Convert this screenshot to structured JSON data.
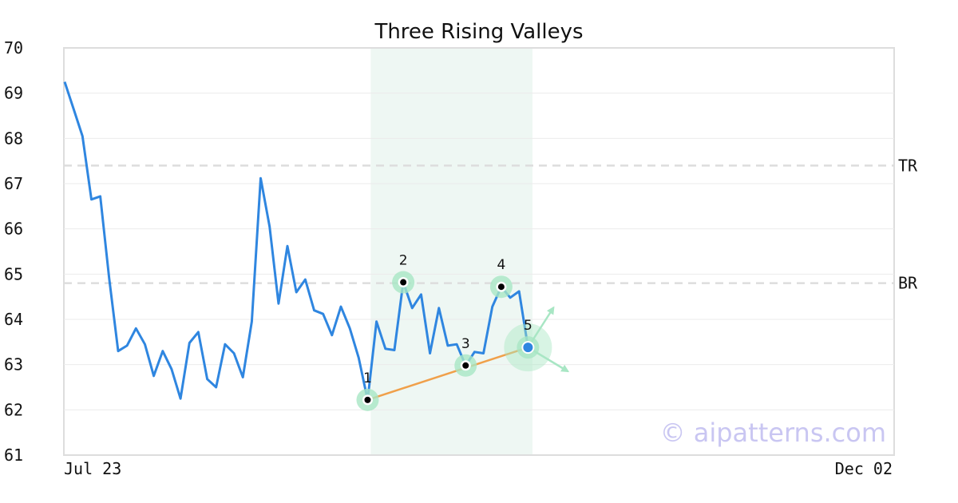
{
  "chart_data": {
    "type": "line",
    "title": "Three Rising Valleys",
    "xlabel": "",
    "ylabel": "",
    "ylim": [
      61,
      70
    ],
    "yticks": [
      61,
      62,
      63,
      64,
      65,
      66,
      67,
      68,
      69,
      70
    ],
    "x_tick_labels": [
      "Jul 23",
      "Dec 02"
    ],
    "grid": true,
    "series": [
      {
        "color": "#2f86e0",
        "values": [
          69.25,
          68.65,
          68.05,
          66.65,
          66.72,
          64.9,
          63.3,
          63.42,
          63.8,
          63.45,
          62.75,
          63.3,
          62.9,
          62.25,
          63.48,
          63.72,
          62.68,
          62.5,
          63.45,
          63.25,
          62.72,
          63.95,
          67.12,
          66.05,
          64.35,
          65.62,
          64.6,
          64.88,
          64.2,
          64.12,
          63.65,
          64.28,
          63.8,
          63.15,
          62.22,
          63.95,
          63.35,
          63.32,
          64.82,
          64.25,
          64.55,
          63.25,
          64.25,
          63.42,
          63.45,
          62.98,
          63.28,
          63.25,
          64.28,
          64.72,
          64.48,
          64.62,
          63.38
        ]
      }
    ],
    "pattern": {
      "points": [
        {
          "label": "1",
          "index": 34,
          "value": 62.22
        },
        {
          "label": "2",
          "index": 38,
          "value": 64.82
        },
        {
          "label": "3",
          "index": 45,
          "value": 62.98
        },
        {
          "label": "4",
          "index": 49,
          "value": 64.72
        },
        {
          "label": "5",
          "index": 52,
          "value": 63.38
        }
      ],
      "highlight_range": [
        33,
        52.5
      ],
      "trendline": {
        "from_index": 34,
        "from_value": 62.22,
        "to_index": 52,
        "to_value": 63.38,
        "color": "#f0a04a"
      }
    },
    "levels": [
      {
        "label": "TR",
        "value": 67.4
      },
      {
        "label": "BR",
        "value": 64.8
      }
    ],
    "x_domain": [
      0,
      93
    ],
    "colors": {
      "line": "#2f86e0",
      "highlight": "#eef7f3",
      "marker_halo": "#a8e6c4",
      "arrow": "#a8e6c4",
      "level": "#dddddd"
    }
  },
  "watermark": "© aipatterns.com"
}
